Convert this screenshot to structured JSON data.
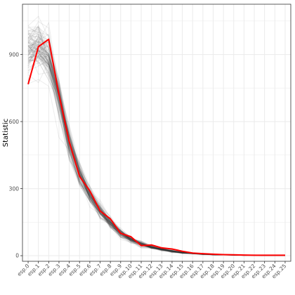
{
  "chart_data": {
    "type": "line",
    "title": "",
    "xlabel": "",
    "ylabel": "Statistic",
    "ylim": [
      -25,
      1125
    ],
    "y_ticks": [
      0,
      300,
      600,
      900
    ],
    "y_tick_labels": [
      "0",
      "300",
      "600",
      "900"
    ],
    "categories": [
      "esp.0",
      "esp.1",
      "esp.2",
      "esp.3",
      "esp.4",
      "esp.5",
      "esp.6",
      "esp.7",
      "esp.8",
      "esp.9",
      "esp.10",
      "esp.11",
      "esp.12",
      "esp.13",
      "esp.14",
      "esp.15",
      "esp.16",
      "esp.17",
      "esp.18",
      "esp.19",
      "esp.20",
      "esp.21",
      "esp.22",
      "esp.23",
      "esp.24",
      "esp.25"
    ],
    "grid": true,
    "legend": "none",
    "colors": {
      "highlight": "#ff0000",
      "background_lines": "#333333",
      "panel_border": "#333333",
      "grid": "#ebebeb"
    },
    "highlight_series": {
      "values": [
        767,
        935,
        968,
        720,
        510,
        355,
        290,
        200,
        165,
        100,
        85,
        45,
        48,
        35,
        30,
        20,
        12,
        9,
        7,
        5,
        4,
        3,
        2,
        2,
        2,
        2
      ]
    },
    "background_series_note_count": 100,
    "background_mean": [
      920,
      930,
      890,
      700,
      500,
      360,
      270,
      200,
      145,
      100,
      72,
      52,
      38,
      28,
      20,
      14,
      10,
      7,
      5,
      4,
      3,
      2,
      2,
      1,
      1,
      1
    ],
    "background_spread": [
      60,
      70,
      60,
      50,
      40,
      30,
      25,
      20,
      16,
      13,
      10,
      8,
      6,
      5,
      4,
      3,
      2,
      2,
      1.5,
      1,
      1,
      1,
      1,
      0.5,
      0.5,
      0.5
    ]
  }
}
